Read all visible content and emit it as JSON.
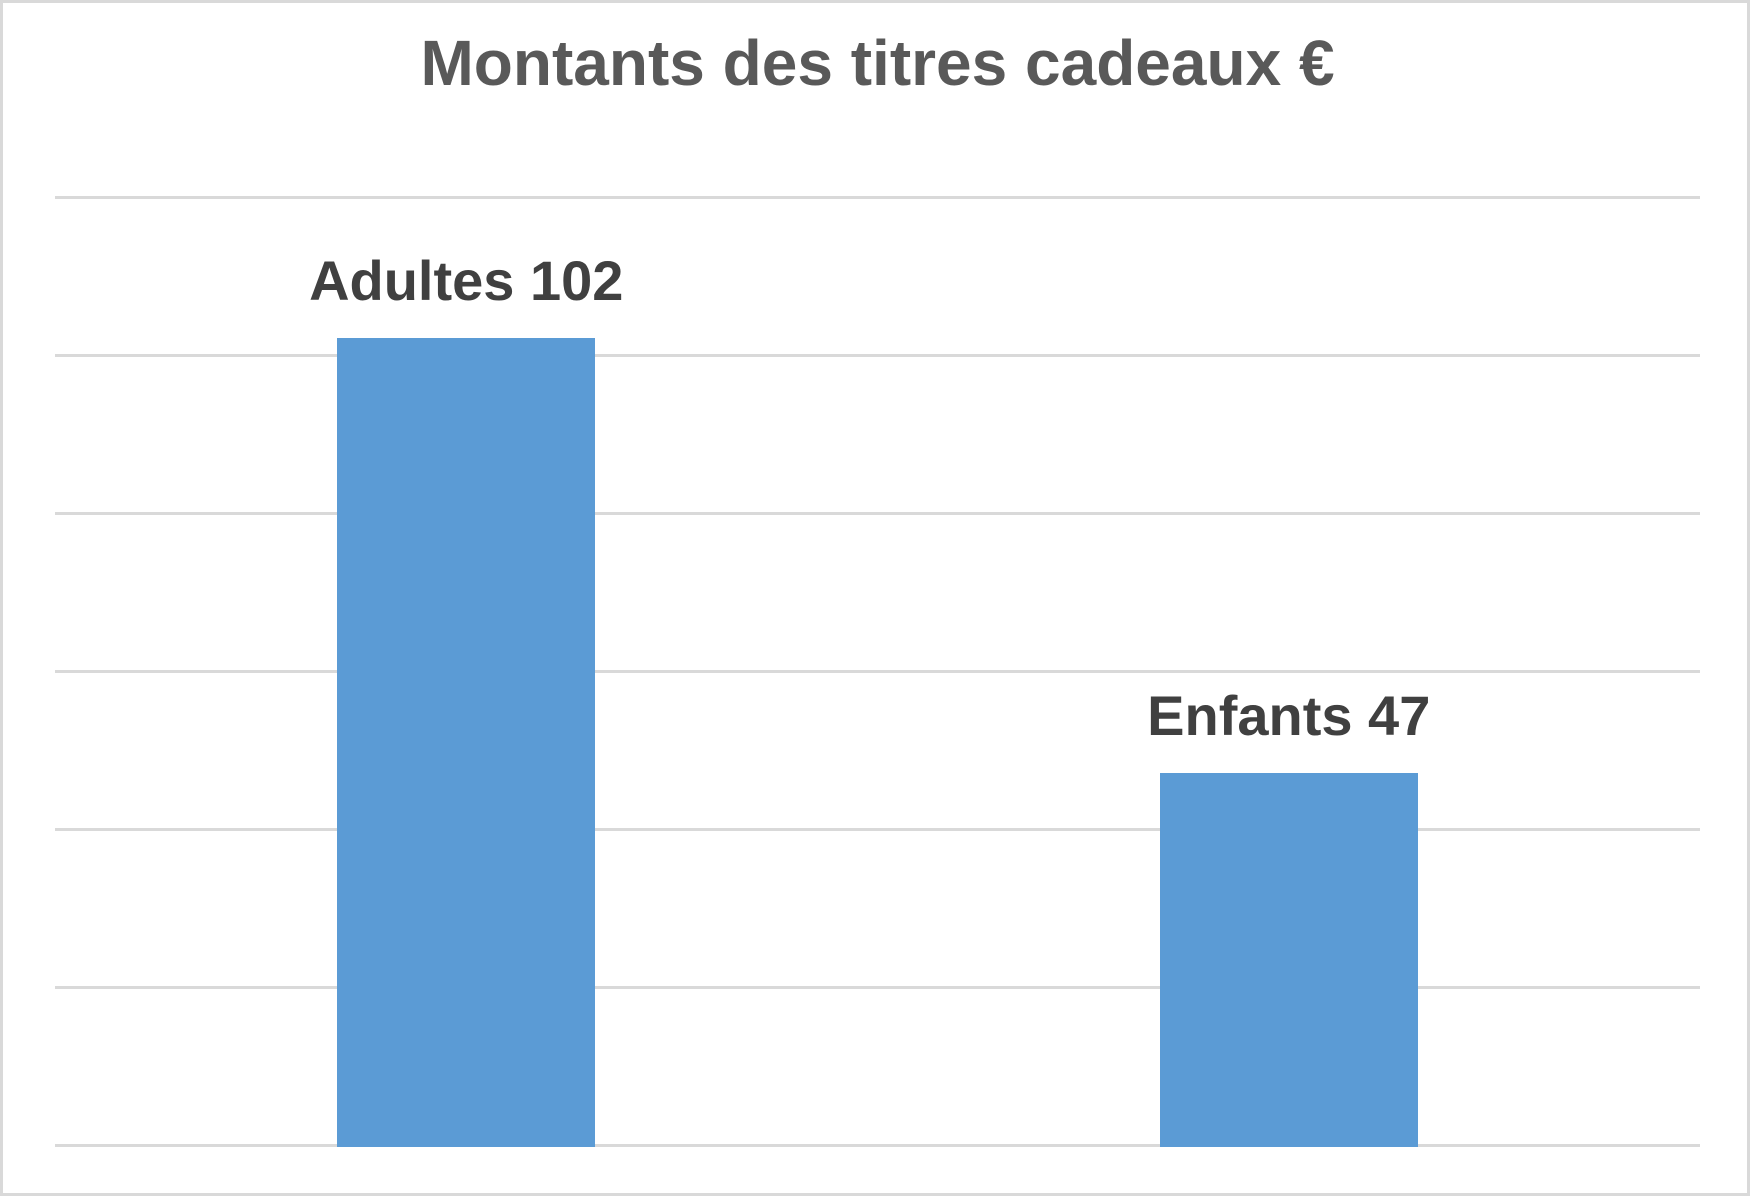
{
  "page": {
    "background": "#ffffff",
    "frame_border_color": "#d9d9d9"
  },
  "chart_data": {
    "type": "bar",
    "title": "Montants des titres cadeaux €",
    "categories": [
      "Adultes",
      "Enfants"
    ],
    "values": [
      102,
      47
    ],
    "data_labels": [
      "Adultes 102",
      "Enfants 47"
    ],
    "xlabel": "",
    "ylabel": "",
    "ylim": [
      0,
      120
    ],
    "gridline_interval": 20,
    "grid": true,
    "axis_tick_labels_visible": false,
    "legend_position": "none",
    "bar_color": "#5b9bd5",
    "gridline_color": "#d9d9d9",
    "title_color": "#595959",
    "data_label_color": "#404040"
  }
}
